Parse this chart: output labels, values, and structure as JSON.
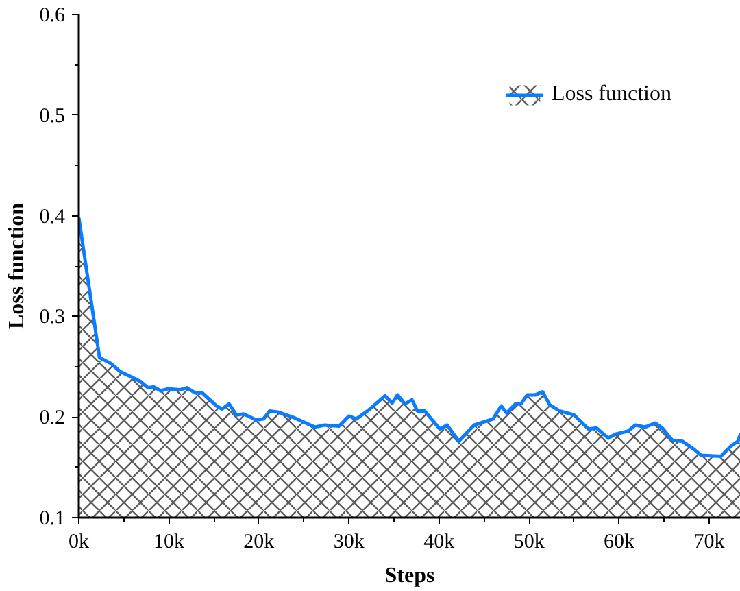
{
  "chart_data": {
    "type": "area",
    "xlabel": "Steps",
    "ylabel": "Loss function",
    "xlim": [
      0,
      73500
    ],
    "ylim": [
      0.1,
      0.6
    ],
    "xticks": [
      {
        "value": 0,
        "label": "0k"
      },
      {
        "value": 10000,
        "label": "10k"
      },
      {
        "value": 20000,
        "label": "20k"
      },
      {
        "value": 30000,
        "label": "30k"
      },
      {
        "value": 40000,
        "label": "40k"
      },
      {
        "value": 50000,
        "label": "50k"
      },
      {
        "value": 60000,
        "label": "60k"
      },
      {
        "value": 70000,
        "label": "70k"
      }
    ],
    "yticks": [
      0.1,
      0.2,
      0.3,
      0.4,
      0.5,
      0.6
    ],
    "grid": false,
    "legend": "top right",
    "series": [
      {
        "name": "Loss function",
        "color": "#0a7cff",
        "x": [
          0,
          2300,
          3600,
          4600,
          5800,
          6900,
          7700,
          8300,
          9100,
          9900,
          11200,
          12000,
          12900,
          13700,
          15300,
          15900,
          16700,
          17500,
          18300,
          19700,
          20500,
          21200,
          22100,
          24000,
          26200,
          27300,
          28900,
          30000,
          30800,
          32200,
          34000,
          34800,
          35400,
          36200,
          37000,
          37600,
          38400,
          40100,
          40900,
          42200,
          43900,
          46000,
          46900,
          47500,
          48500,
          49100,
          49800,
          50700,
          51500,
          52300,
          53400,
          55000,
          56600,
          57500,
          58800,
          59600,
          61000,
          61800,
          62900,
          64000,
          64800,
          65900,
          67000,
          68300,
          69100,
          71300,
          72400,
          73200,
          73500
        ],
        "values": [
          0.398,
          0.259,
          0.253,
          0.245,
          0.24,
          0.235,
          0.229,
          0.23,
          0.226,
          0.228,
          0.227,
          0.229,
          0.224,
          0.224,
          0.211,
          0.208,
          0.213,
          0.202,
          0.203,
          0.197,
          0.198,
          0.206,
          0.205,
          0.199,
          0.19,
          0.192,
          0.191,
          0.201,
          0.198,
          0.207,
          0.221,
          0.214,
          0.222,
          0.213,
          0.217,
          0.206,
          0.206,
          0.188,
          0.192,
          0.176,
          0.192,
          0.198,
          0.211,
          0.204,
          0.213,
          0.213,
          0.222,
          0.222,
          0.225,
          0.212,
          0.206,
          0.202,
          0.188,
          0.189,
          0.179,
          0.183,
          0.186,
          0.192,
          0.19,
          0.194,
          0.189,
          0.177,
          0.176,
          0.168,
          0.162,
          0.161,
          0.171,
          0.176,
          0.184
        ]
      }
    ]
  }
}
